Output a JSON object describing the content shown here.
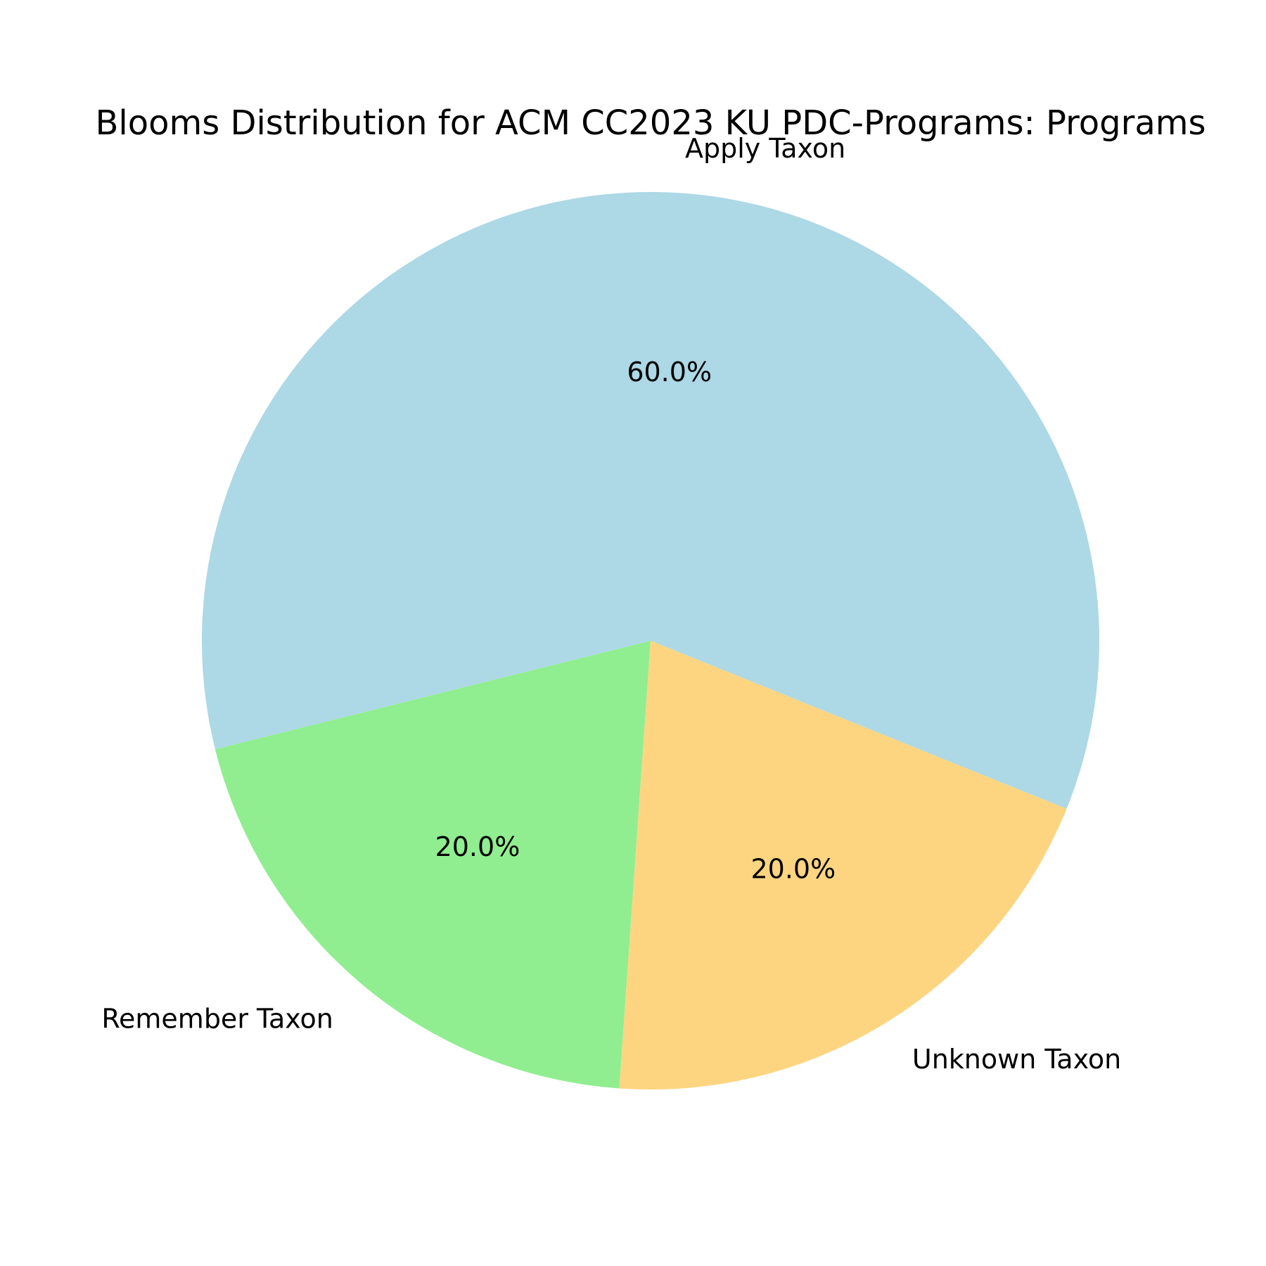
{
  "chart_data": {
    "type": "pie",
    "title": "Blooms Distribution for ACM CC2023 KU PDC-Programs: Programs",
    "slices": [
      {
        "label": "Apply Taxon",
        "value": 60.0,
        "pct_label": "60.0%",
        "color": "#add8e6"
      },
      {
        "label": "Remember Taxon",
        "value": 20.0,
        "pct_label": "20.0%",
        "color": "#90ee90"
      },
      {
        "label": "Unknown Taxon",
        "value": 20.0,
        "pct_label": "20.0%",
        "color": "#fdd581"
      }
    ],
    "start_angle_deg": -22,
    "direction": "counterclockwise"
  }
}
